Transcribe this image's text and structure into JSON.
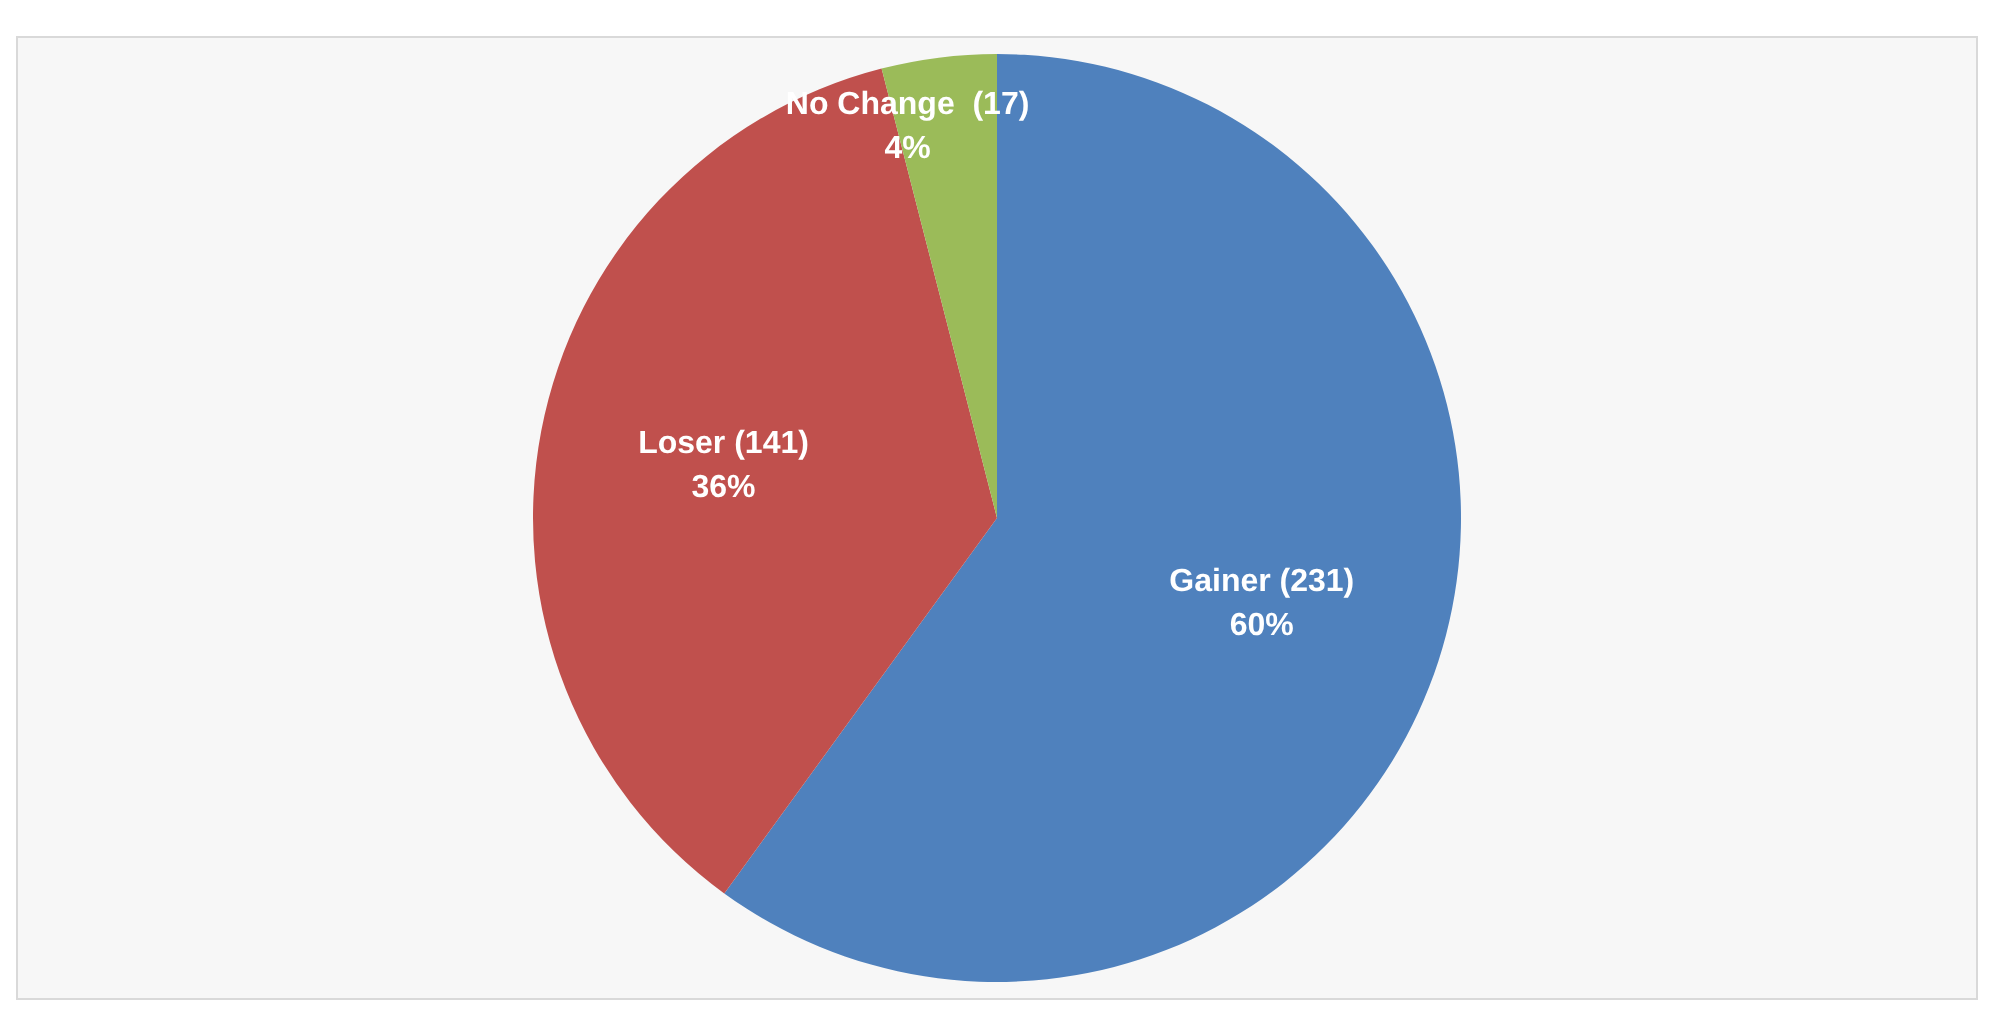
{
  "chart_data": {
    "type": "pie",
    "categories": [
      "Gainer (231)",
      "Loser (141)",
      "No Change  (17)"
    ],
    "values": [
      60,
      36,
      4
    ],
    "colors": [
      "#4f81bd",
      "#c0504d",
      "#9bbb59"
    ],
    "value_labels": [
      "60%",
      "36%",
      "4%"
    ],
    "legend": false
  }
}
